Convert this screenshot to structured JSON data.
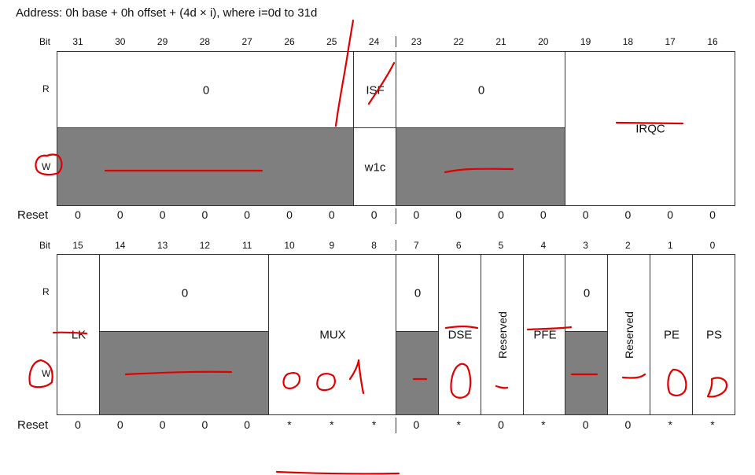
{
  "title": "Address: 0h base + 0h offset + (4d × i), where i=0d to 31d",
  "labels": {
    "bit": "Bit",
    "r": "R",
    "w": "W",
    "reset": "Reset"
  },
  "upper": {
    "bits": [
      "31",
      "30",
      "29",
      "28",
      "27",
      "26",
      "25",
      "24",
      "23",
      "22",
      "21",
      "20",
      "19",
      "18",
      "17",
      "16"
    ],
    "fields": {
      "r_31_25": "0",
      "isf": "ISF",
      "r_23_20": "0",
      "irqc": "IRQC",
      "isf_w": "w1c"
    },
    "reset": [
      "0",
      "0",
      "0",
      "0",
      "0",
      "0",
      "0",
      "0",
      "0",
      "0",
      "0",
      "0",
      "0",
      "0",
      "0",
      "0"
    ]
  },
  "lower": {
    "bits": [
      "15",
      "14",
      "13",
      "12",
      "11",
      "10",
      "9",
      "8",
      "7",
      "6",
      "5",
      "4",
      "3",
      "2",
      "1",
      "0"
    ],
    "fields": {
      "lk": "LK",
      "r_14_11": "0",
      "mux": "MUX",
      "r_7": "0",
      "dse": "DSE",
      "reserved_5": "Reserved",
      "pfe": "PFE",
      "r_3": "0",
      "reserved_2": "Reserved",
      "pe": "PE",
      "ps": "PS"
    },
    "reset": [
      "0",
      "0",
      "0",
      "0",
      "0",
      "*",
      "*",
      "*",
      "0",
      "*",
      "0",
      "*",
      "0",
      "0",
      "*",
      "*"
    ]
  },
  "handwriting": {
    "mux_value": "001"
  }
}
